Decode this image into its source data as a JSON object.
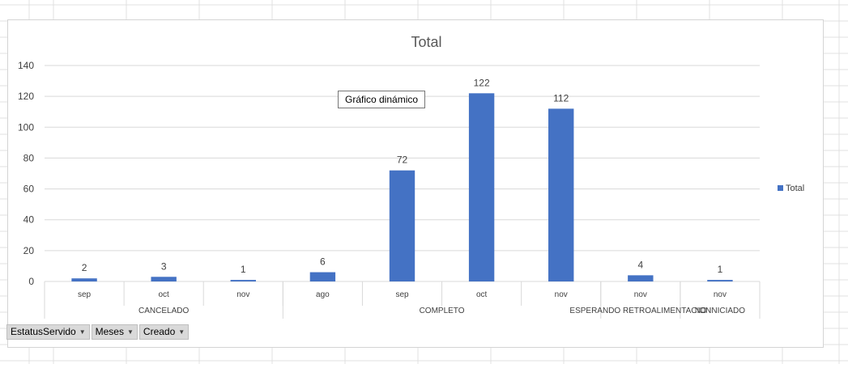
{
  "pivot_buttons": [
    {
      "label": "EstatusServido",
      "icon": "dropdown-arrow-icon"
    },
    {
      "label": "Meses",
      "icon": "dropdown-arrow-icon"
    },
    {
      "label": "Creado",
      "icon": "dropdown-arrow-icon"
    }
  ],
  "tooltip": {
    "text": "Gráfico dinámico"
  },
  "colors": {
    "bar": "#4472c4",
    "grid": "#d9d9d9",
    "text": "#404040",
    "sheet_grid": "#e1e1e1"
  },
  "chart_data": {
    "type": "bar",
    "title": "Total",
    "xlabel": "",
    "ylabel": "",
    "ylim": [
      0,
      140
    ],
    "yticks": [
      0,
      20,
      40,
      60,
      80,
      100,
      120,
      140
    ],
    "grid": true,
    "legend_position": "right",
    "groups": [
      {
        "name": "CANCELADO",
        "categories": [
          "sep",
          "oct",
          "nov"
        ]
      },
      {
        "name": "COMPLETO",
        "categories": [
          "ago",
          "sep",
          "oct",
          "nov"
        ]
      },
      {
        "name": "ESPERANDO RETROALIMENTACION",
        "categories": [
          "nov"
        ]
      },
      {
        "name": "NO INICIADO",
        "categories": [
          "nov"
        ]
      }
    ],
    "categories": [
      "sep",
      "oct",
      "nov",
      "ago",
      "sep",
      "oct",
      "nov",
      "nov",
      "nov"
    ],
    "series": [
      {
        "name": "Total",
        "values": [
          2,
          3,
          1,
          6,
          72,
          122,
          112,
          4,
          1
        ]
      }
    ]
  }
}
